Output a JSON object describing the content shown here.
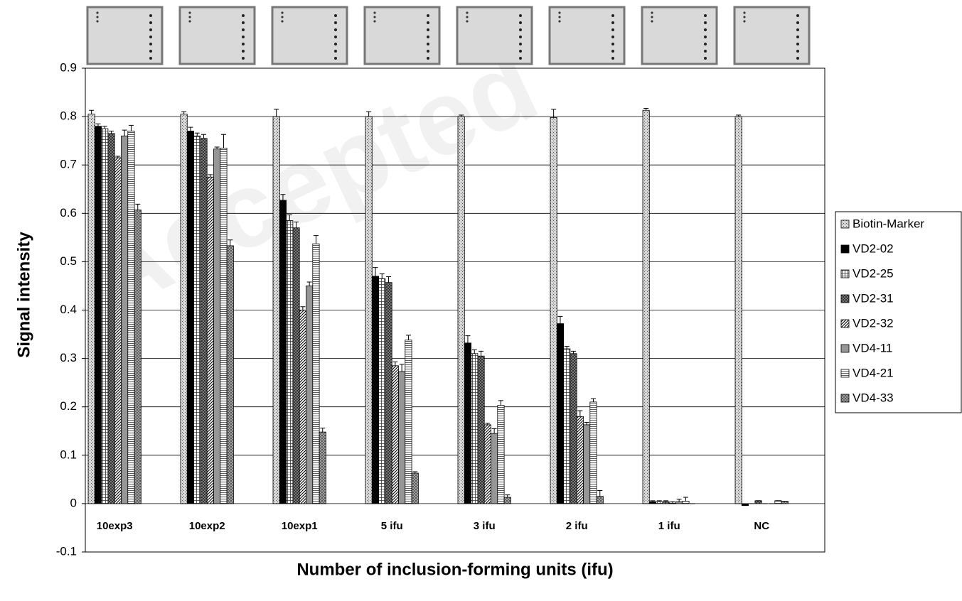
{
  "chart_data": {
    "type": "bar",
    "y_label": "Signal intensity",
    "x_label": "Number of inclusion-forming units (ifu)",
    "watermark": "Accepted",
    "categories": [
      "10exp3",
      "10exp2",
      "10exp1",
      "5 ifu",
      "3 ifu",
      "2 ifu",
      "1 ifu",
      "NC"
    ],
    "ylim": [
      -0.1,
      0.9
    ],
    "yticks": [
      -0.1,
      0,
      0.1,
      0.2,
      0.3,
      0.4,
      0.5,
      0.6,
      0.7,
      0.8,
      0.9
    ],
    "grid": true,
    "legend": "right",
    "series": [
      {
        "name": "Biotin-Marker",
        "color": "#d8d8d8",
        "pattern": "dots",
        "values": [
          0.805,
          0.805,
          0.8,
          0.8,
          0.8,
          0.798,
          0.813,
          0.8
        ],
        "errors": [
          0.008,
          0.005,
          0.015,
          0.01,
          0.003,
          0.017,
          0.004,
          0.003
        ]
      },
      {
        "name": "VD2-02",
        "color": "#000000",
        "pattern": "solid",
        "values": [
          0.78,
          0.77,
          0.627,
          0.47,
          0.332,
          0.372,
          0.004,
          -0.004
        ],
        "errors": [
          0.005,
          0.008,
          0.012,
          0.018,
          0.015,
          0.015,
          0.002,
          0
        ]
      },
      {
        "name": "VD2-25",
        "color": "#ffffff",
        "pattern": "grid",
        "values": [
          0.775,
          0.76,
          0.585,
          0.465,
          0.31,
          0.32,
          0.004,
          0
        ],
        "errors": [
          0.005,
          0.006,
          0.012,
          0.01,
          0.008,
          0.005,
          0.002,
          0
        ]
      },
      {
        "name": "VD2-31",
        "color": "#8c8c8c",
        "pattern": "crosshatch",
        "values": [
          0.765,
          0.755,
          0.57,
          0.457,
          0.305,
          0.31,
          0.004,
          0.006
        ],
        "errors": [
          0.005,
          0.008,
          0.012,
          0.012,
          0.01,
          0.005,
          0.002,
          0
        ]
      },
      {
        "name": "VD2-32",
        "color": "#ffffff",
        "pattern": "diagonal",
        "values": [
          0.715,
          0.675,
          0.4,
          0.285,
          0.163,
          0.18,
          0.001,
          0
        ],
        "errors": [
          0.003,
          0.005,
          0.007,
          0.008,
          0.003,
          0.012,
          0.003,
          0
        ]
      },
      {
        "name": "VD4-11",
        "color": "#969696",
        "pattern": "solid",
        "values": [
          0.76,
          0.733,
          0.45,
          0.273,
          0.145,
          0.163,
          0.004,
          0
        ],
        "errors": [
          0.012,
          0.004,
          0.008,
          0.015,
          0.01,
          0.005,
          0.005,
          0
        ]
      },
      {
        "name": "VD4-21",
        "color": "#ffffff",
        "pattern": "hlines",
        "values": [
          0.77,
          0.735,
          0.537,
          0.338,
          0.203,
          0.21,
          0.005,
          0.006
        ],
        "errors": [
          0.012,
          0.028,
          0.017,
          0.01,
          0.01,
          0.007,
          0.008,
          0
        ]
      },
      {
        "name": "VD4-33",
        "color": "#a0a0a0",
        "pattern": "dense",
        "values": [
          0.607,
          0.533,
          0.148,
          0.063,
          0.013,
          0.015,
          0,
          0.005
        ],
        "errors": [
          0.012,
          0.012,
          0.008,
          0.003,
          0.005,
          0.012,
          0,
          0
        ]
      }
    ]
  }
}
